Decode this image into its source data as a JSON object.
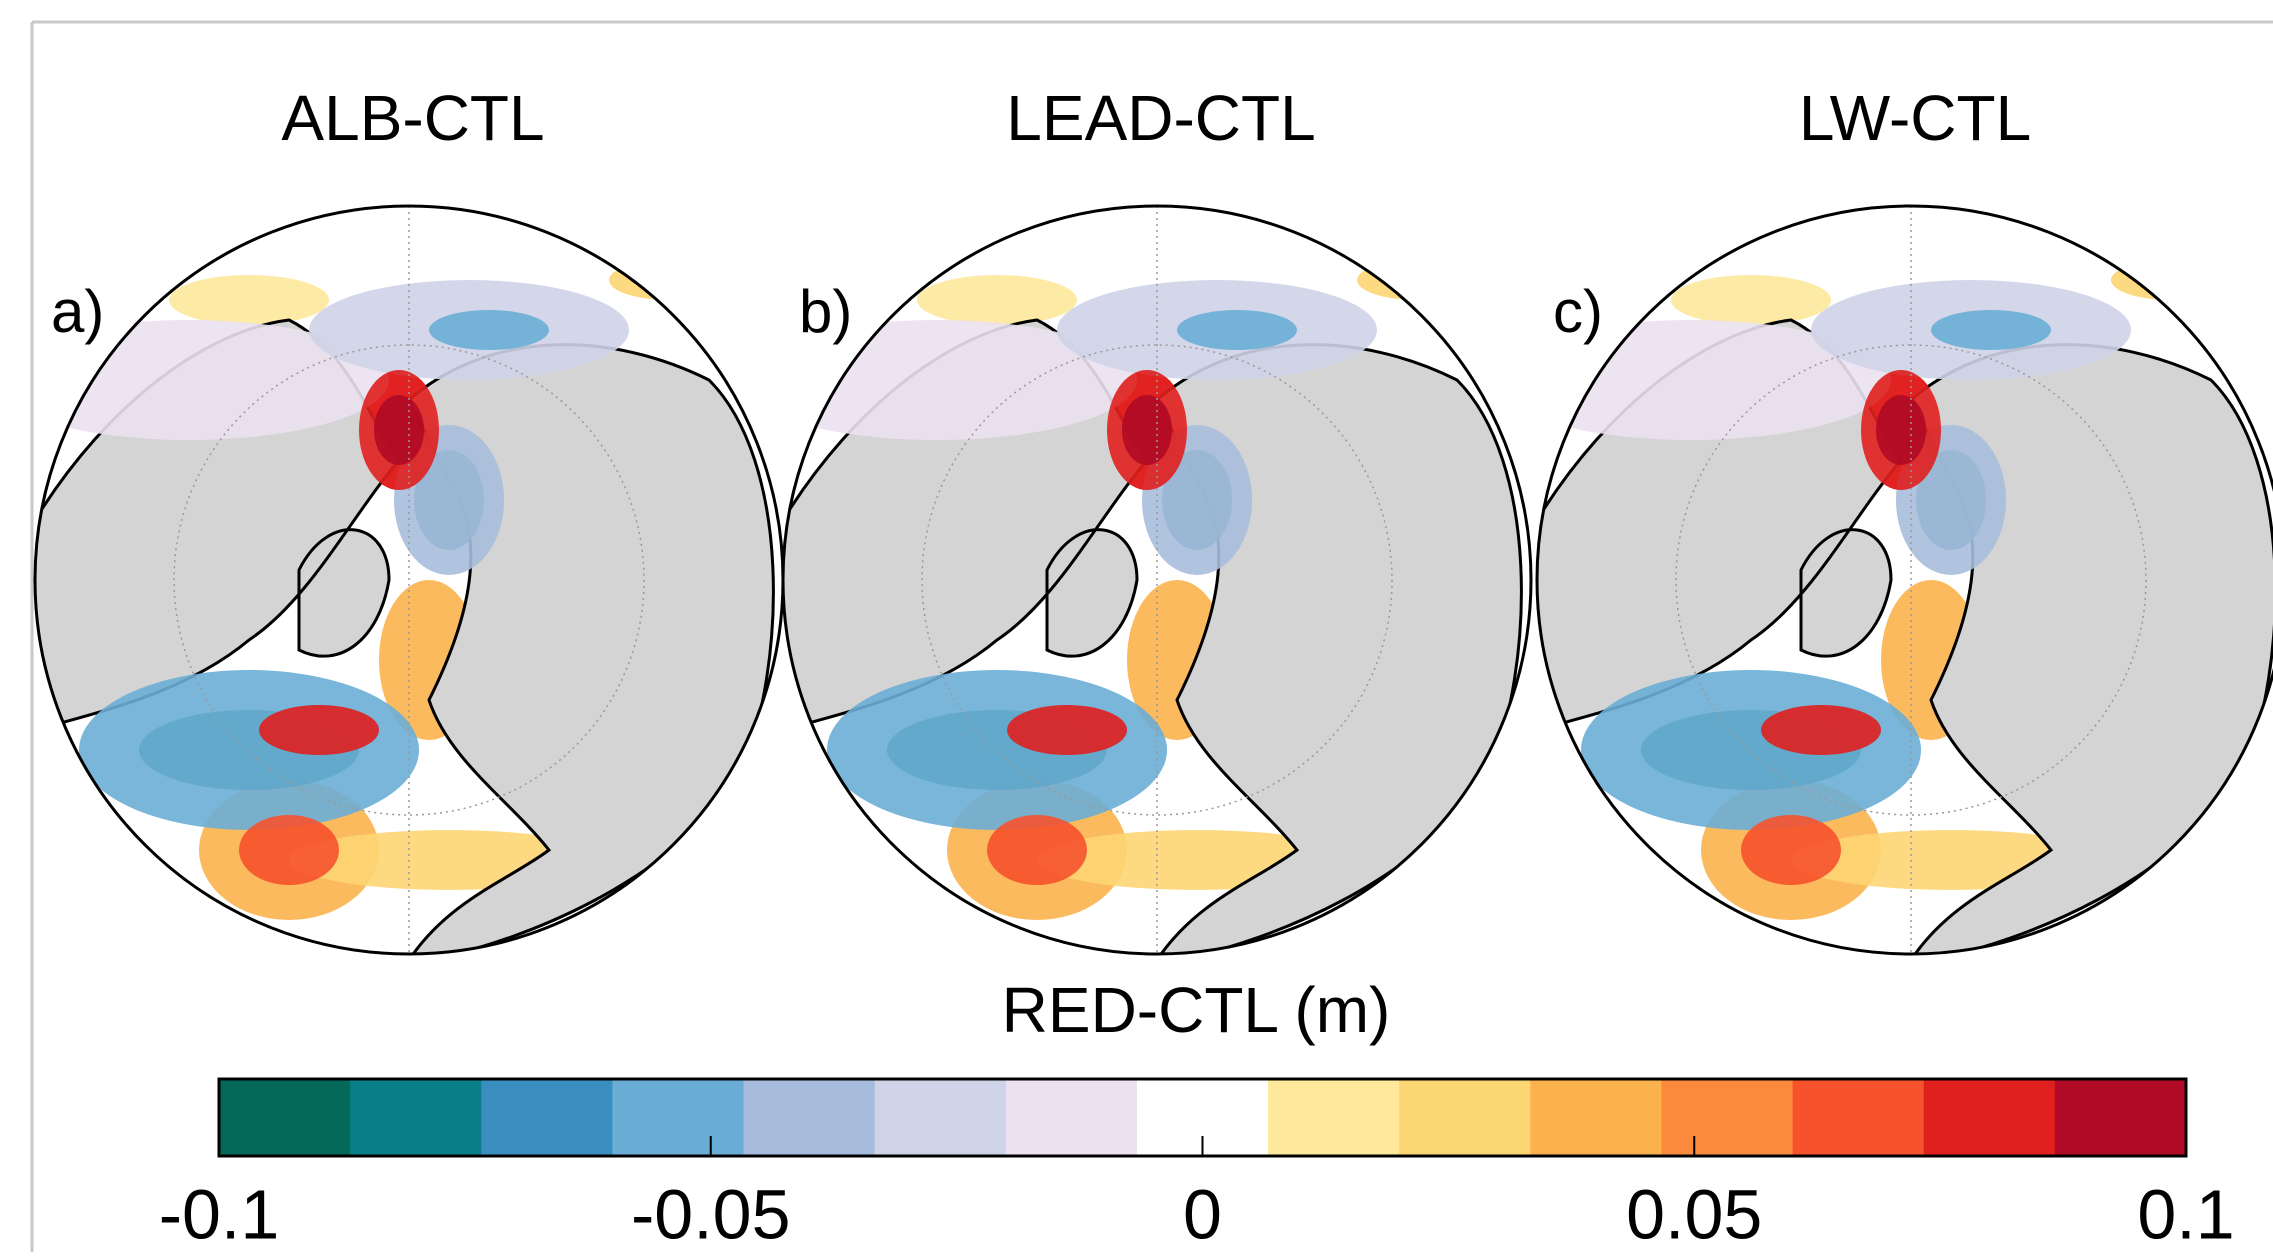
{
  "panels": [
    {
      "label": "a)",
      "title": "ALB-CTL"
    },
    {
      "label": "b)",
      "title": "LEAD-CTL"
    },
    {
      "label": "c)",
      "title": "LW-CTL"
    }
  ],
  "chart_data": {
    "type": "colorbar",
    "title": "RED-CTL (m)",
    "xlim": [
      -0.1,
      0.1
    ],
    "xticks": [
      -0.1,
      -0.05,
      0,
      0.05,
      0.1
    ],
    "colors": [
      "#05695a",
      "#0b7f88",
      "#3b8fc0",
      "#6aaed6",
      "#a7bcdc",
      "#cfd3e7",
      "#ebe1f0",
      "#ffffff",
      "#fde89b",
      "#fdd674",
      "#fcb24c",
      "#fb8a3c",
      "#f6532d",
      "#e0201f",
      "#b00a26"
    ]
  }
}
